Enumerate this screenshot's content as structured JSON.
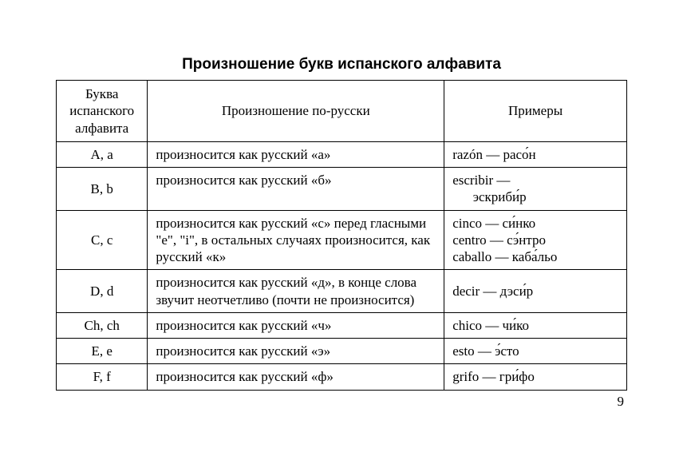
{
  "title": "Произношение букв испанского алфавита",
  "pageNumber": "9",
  "table": {
    "headers": {
      "letter": "Буква испанского алфавита",
      "pronunciation": "Произношение по-русски",
      "examples": "Примеры"
    },
    "col_widths_percent": [
      16,
      52,
      32
    ],
    "border_color": "#000000",
    "background_color": "#ffffff",
    "text_color": "#000000",
    "title_fontsize_pt": 14,
    "body_fontsize_pt": 13,
    "rows": [
      {
        "letter": "A, a",
        "pronunciation": "произносится как русский «а»",
        "examples": "razón — расо́н"
      },
      {
        "letter": "B, b",
        "pronunciation": "произносится как русский «б»",
        "examples_line1": "escribir —",
        "examples_line2": "эскриби́р"
      },
      {
        "letter": "C, c",
        "pronunciation": "произносится как русский «с» перед гласными \"e\", \"i\", в остальных случаях произносится, как русский «к»",
        "examples_line1": "cinco — си́нко",
        "examples_line2": "centro — сэ́нтро",
        "examples_line3": "caballo — каба́льо"
      },
      {
        "letter": "D, d",
        "pronunciation": "произносится как русский «д», в конце слова звучит неотчетливо (почти не произносится)",
        "examples": "decir — дэси́р"
      },
      {
        "letter": "Ch, ch",
        "pronunciation": "произносится как русский «ч»",
        "examples": "chico — чи́ко"
      },
      {
        "letter": "E, e",
        "pronunciation": "произносится как русский «э»",
        "examples": "esto — э́сто"
      },
      {
        "letter": "F, f",
        "pronunciation": "произносится как русский «ф»",
        "examples": "grifo — гри́фо"
      }
    ]
  }
}
